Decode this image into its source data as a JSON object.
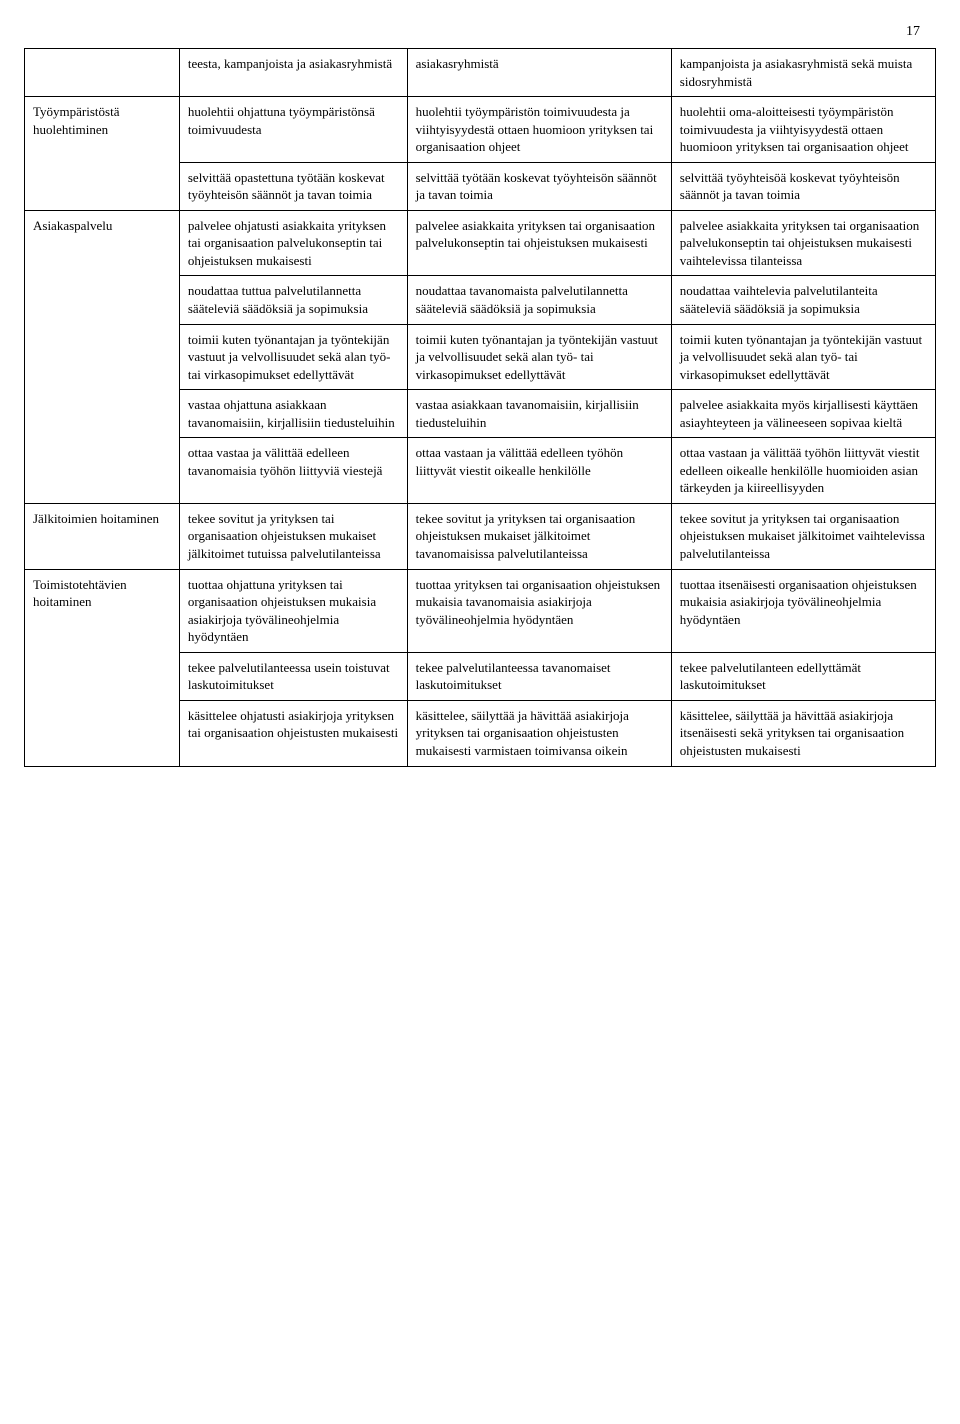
{
  "page_number": "17",
  "rows": [
    {
      "c1": "",
      "c2": "teesta, kampanjoista ja asiakasryhmistä",
      "c3": "asiakasryhmistä",
      "c4": "kampanjoista ja asiakasryhmistä sekä muista sidosryhmistä"
    },
    {
      "c1": "Työympäristöstä huolehtiminen",
      "c2": "huolehtii ohjattuna työympäristönsä toimivuudesta",
      "c3": "huolehtii työympäristön toimivuudesta ja viihtyisyydestä ottaen huomioon yrityksen tai organisaation ohjeet",
      "c4": "huolehtii oma-aloitteisesti työympäristön toimivuudesta ja viihtyisyydestä ottaen huomioon yrityksen tai organisaation ohjeet"
    },
    {
      "c1": "",
      "c2": "selvittää opastettuna työtään koskevat työyhteisön säännöt ja tavan toimia",
      "c3": "selvittää työtään koskevat työyhteisön säännöt ja tavan toimia",
      "c4": "selvittää työyhteisöä koskevat työyhteisön säännöt ja tavan toimia"
    },
    {
      "c1": "Asiakaspalvelu",
      "c2": "palvelee ohjatusti asiakkaita yrityksen tai organisaation palvelukonseptin tai ohjeistuksen mukaisesti",
      "c3": "palvelee asiakkaita yrityksen tai organisaation palvelukonseptin tai ohjeistuksen mukaisesti",
      "c4": "palvelee asiakkaita yrityksen tai organisaation palvelukonseptin tai ohjeistuksen mukaisesti vaihtelevissa tilanteissa"
    },
    {
      "c1": "",
      "c2": "noudattaa tuttua palvelutilannetta sääteleviä säädöksiä ja sopimuksia",
      "c3": "noudattaa tavanomaista palvelutilannetta sääteleviä säädöksiä ja sopimuksia",
      "c4": "noudattaa vaihtelevia palvelutilanteita sääteleviä säädöksiä ja sopimuksia"
    },
    {
      "c1": "",
      "c2": "toimii kuten työnantajan ja työntekijän vastuut ja velvollisuudet sekä alan työ- tai virkasopimukset edellyttävät",
      "c3": "toimii kuten työnantajan ja työntekijän vastuut ja velvollisuudet sekä alan työ- tai virkasopimukset edellyttävät",
      "c4": "toimii kuten työnantajan ja työntekijän vastuut ja velvollisuudet sekä alan työ- tai virkasopimukset edellyttävät"
    },
    {
      "c1": "",
      "c2": "vastaa ohjattuna asiakkaan tavanomaisiin, kirjallisiin tiedusteluihin",
      "c3": "vastaa asiakkaan tavanomaisiin, kirjallisiin tiedusteluihin",
      "c4": "palvelee asiakkaita myös kirjallisesti käyttäen asiayhteyteen ja välineeseen sopivaa kieltä"
    },
    {
      "c1": "",
      "c2": "ottaa vastaa ja välittää edelleen tavanomaisia työhön liittyviä viestejä",
      "c3": "ottaa vastaan ja välittää edelleen työhön liittyvät viestit oikealle henkilölle",
      "c4": "ottaa vastaan ja välittää työhön liittyvät viestit edelleen oikealle henkilölle huomioiden asian tärkeyden ja kiireellisyyden"
    },
    {
      "c1": "Jälkitoimien hoitaminen",
      "c2": "tekee sovitut ja yrityksen tai organisaation ohjeistuksen mukaiset jälkitoimet tutuissa palvelutilanteissa",
      "c3": "tekee sovitut ja yrityksen tai organisaation ohjeistuksen mukaiset jälkitoimet tavanomaisissa palvelutilanteissa",
      "c4": "tekee sovitut ja yrityksen tai organisaation ohjeistuksen mukaiset jälkitoimet vaihtelevissa palvelutilanteissa"
    },
    {
      "c1": "Toimistotehtävien hoitaminen",
      "c2": "tuottaa ohjattuna yrityksen tai organisaation ohjeistuksen mukaisia asiakirjoja työvälineohjelmia hyödyntäen",
      "c3": "tuottaa yrityksen tai organisaation ohjeistuksen mukaisia tavanomaisia asiakirjoja työvälineohjelmia hyödyntäen",
      "c4": "tuottaa itsenäisesti organisaation ohjeistuksen mukaisia asiakirjoja työvälineohjelmia hyödyntäen"
    },
    {
      "c1": "",
      "c2": "tekee palvelutilanteessa usein toistuvat laskutoimitukset",
      "c3": "tekee palvelutilanteessa tavanomaiset laskutoimitukset",
      "c4": "tekee palvelutilanteen edellyttämät laskutoimitukset"
    },
    {
      "c1": "",
      "c2": "käsittelee ohjatusti asiakirjoja yrityksen tai organisaation ohjeistusten mukaisesti",
      "c3": "käsittelee, säilyttää ja hävittää asiakirjoja yrityksen tai organisaation ohjeistusten mukaisesti varmistaen toimivansa oikein",
      "c4": "käsittelee, säilyttää ja hävittää asiakirjoja itsenäisesti sekä yrityksen tai organisaation ohjeistusten mukaisesti"
    }
  ]
}
